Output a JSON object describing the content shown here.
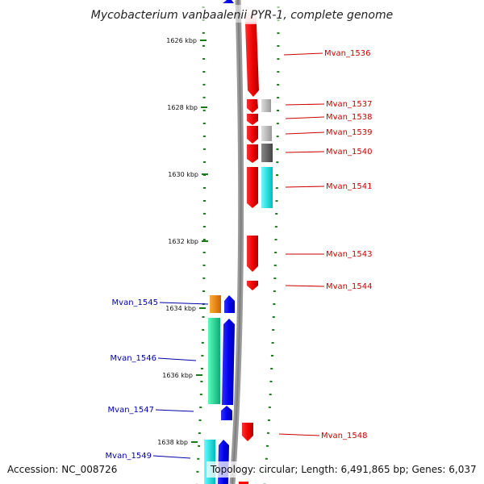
{
  "title": "Mycobacterium vanbaalenii PYR-1, complete genome",
  "accession": "Accession: NC_008726",
  "topology": "Topology: circular; Length: 6,491,865 bp; Genes: 6,037",
  "ticks": [
    {
      "label": "1626 kbp"
    },
    {
      "label": "1628 kbp"
    },
    {
      "label": "1630 kbp"
    },
    {
      "label": "1632 kbp"
    },
    {
      "label": "1634 kbp"
    },
    {
      "label": "1636 kbp"
    },
    {
      "label": "1638 kbp"
    }
  ],
  "genes_right": [
    {
      "label": "Mvan_1536"
    },
    {
      "label": "Mvan_1537"
    },
    {
      "label": "Mvan_1538"
    },
    {
      "label": "Mvan_1539"
    },
    {
      "label": "Mvan_1540"
    },
    {
      "label": "Mvan_1541"
    },
    {
      "label": "Mvan_1543"
    },
    {
      "label": "Mvan_1544"
    },
    {
      "label": "Mvan_1548"
    }
  ],
  "genes_left": [
    {
      "label": "Mvan_1545"
    },
    {
      "label": "Mvan_1546"
    },
    {
      "label": "Mvan_1547"
    },
    {
      "label": "Mvan_1549"
    }
  ],
  "colors": {
    "forward": "#ff0000",
    "reverse": "#0000ee",
    "backbone": "#888888",
    "tick": "#1a7a1a",
    "orange": "#ff8800",
    "green": "#22dd99",
    "cyan": "#00e5e5",
    "grey_light": "#bbbbbb",
    "grey_dark": "#666666"
  }
}
